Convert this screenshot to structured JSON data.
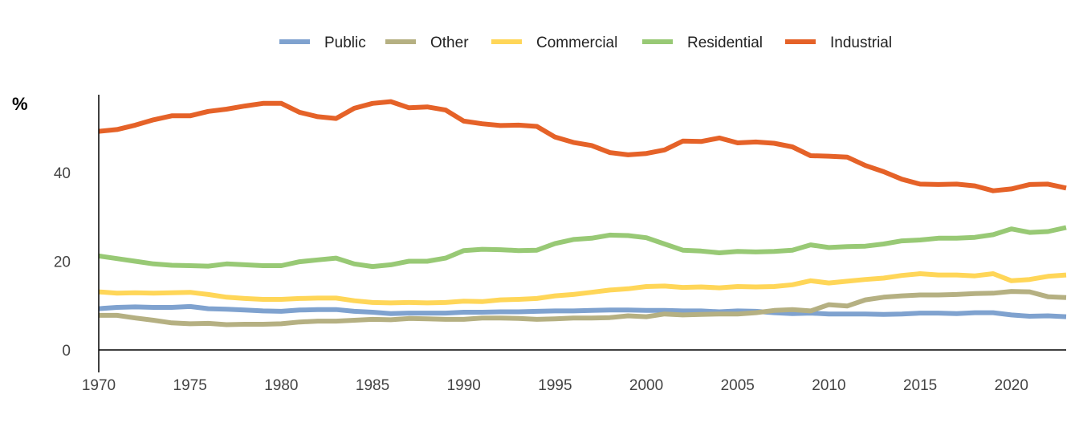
{
  "chart_data": {
    "type": "line",
    "title": "",
    "xlabel": "",
    "ylabel": "%",
    "xlim": [
      1970,
      2023
    ],
    "ylim": [
      0,
      60
    ],
    "x_ticks": [
      1970,
      1975,
      1980,
      1985,
      1990,
      1995,
      2000,
      2005,
      2010,
      2015,
      2020
    ],
    "y_ticks": [
      0,
      20,
      40
    ],
    "grid": false,
    "legend_position": "top-center",
    "x": [
      1970,
      1971,
      1972,
      1973,
      1974,
      1975,
      1976,
      1977,
      1978,
      1979,
      1980,
      1981,
      1982,
      1983,
      1984,
      1985,
      1986,
      1987,
      1988,
      1989,
      1990,
      1991,
      1992,
      1993,
      1994,
      1995,
      1996,
      1997,
      1998,
      1999,
      2000,
      2001,
      2002,
      2003,
      2004,
      2005,
      2006,
      2007,
      2008,
      2009,
      2010,
      2011,
      2012,
      2013,
      2014,
      2015,
      2016,
      2017,
      2018,
      2019,
      2020,
      2021,
      2022,
      2023
    ],
    "series": [
      {
        "name": "Public",
        "color": "#7fa2cf",
        "values": [
          9.3,
          9.6,
          9.7,
          9.6,
          9.6,
          9.8,
          9.3,
          9.2,
          9.0,
          8.8,
          8.7,
          9.0,
          9.1,
          9.1,
          8.7,
          8.5,
          8.2,
          8.3,
          8.3,
          8.3,
          8.5,
          8.5,
          8.6,
          8.6,
          8.7,
          8.8,
          8.8,
          8.9,
          9.0,
          9.0,
          8.9,
          8.9,
          8.8,
          8.8,
          8.6,
          8.8,
          8.7,
          8.4,
          8.2,
          8.3,
          8.1,
          8.1,
          8.1,
          8.0,
          8.1,
          8.3,
          8.3,
          8.2,
          8.4,
          8.4,
          7.9,
          7.6,
          7.7,
          7.5
        ]
      },
      {
        "name": "Other",
        "color": "#b5b082",
        "values": [
          7.8,
          7.8,
          7.2,
          6.7,
          6.1,
          5.9,
          6.0,
          5.7,
          5.8,
          5.8,
          5.9,
          6.3,
          6.5,
          6.5,
          6.7,
          6.9,
          6.8,
          7.1,
          7.0,
          6.9,
          6.9,
          7.2,
          7.2,
          7.1,
          6.9,
          7.0,
          7.2,
          7.2,
          7.3,
          7.7,
          7.5,
          8.1,
          7.9,
          8.0,
          8.1,
          8.1,
          8.4,
          8.9,
          9.1,
          8.8,
          10.2,
          9.9,
          11.3,
          11.9,
          12.2,
          12.4,
          12.4,
          12.5,
          12.7,
          12.8,
          13.2,
          13.1,
          12.0,
          11.8
        ]
      },
      {
        "name": "Commercial",
        "color": "#ffd658",
        "values": [
          13.1,
          12.8,
          12.9,
          12.8,
          12.9,
          13.0,
          12.5,
          11.9,
          11.6,
          11.4,
          11.4,
          11.6,
          11.7,
          11.7,
          11.1,
          10.7,
          10.6,
          10.7,
          10.6,
          10.7,
          11.0,
          10.9,
          11.3,
          11.4,
          11.6,
          12.2,
          12.5,
          13.0,
          13.5,
          13.8,
          14.3,
          14.4,
          14.1,
          14.2,
          14.0,
          14.3,
          14.2,
          14.3,
          14.7,
          15.6,
          15.1,
          15.5,
          15.9,
          16.2,
          16.8,
          17.2,
          16.9,
          16.9,
          16.7,
          17.2,
          15.6,
          15.9,
          16.6,
          16.9
        ]
      },
      {
        "name": "Residential",
        "color": "#98c975",
        "values": [
          21.2,
          20.6,
          20.0,
          19.4,
          19.1,
          19.0,
          18.9,
          19.4,
          19.2,
          19.0,
          19.0,
          19.9,
          20.3,
          20.7,
          19.4,
          18.8,
          19.2,
          20.0,
          20.0,
          20.7,
          22.4,
          22.7,
          22.6,
          22.4,
          22.5,
          24.0,
          24.9,
          25.2,
          25.9,
          25.8,
          25.3,
          23.9,
          22.5,
          22.3,
          21.9,
          22.2,
          22.1,
          22.2,
          22.5,
          23.7,
          23.1,
          23.3,
          23.4,
          23.9,
          24.6,
          24.8,
          25.2,
          25.2,
          25.4,
          26.0,
          27.3,
          26.5,
          26.7,
          27.6
        ]
      },
      {
        "name": "Industrial",
        "color": "#e56228",
        "values": [
          49.3,
          49.7,
          50.7,
          51.9,
          52.8,
          52.8,
          53.8,
          54.3,
          55.0,
          55.6,
          55.6,
          53.6,
          52.6,
          52.2,
          54.5,
          55.6,
          56.0,
          54.6,
          54.8,
          54.1,
          51.6,
          51.0,
          50.6,
          50.7,
          50.4,
          48.0,
          46.8,
          46.1,
          44.5,
          44.0,
          44.3,
          45.1,
          47.1,
          47.0,
          47.8,
          46.7,
          46.9,
          46.6,
          45.8,
          43.8,
          43.7,
          43.5,
          41.6,
          40.2,
          38.5,
          37.4,
          37.3,
          37.4,
          37.0,
          35.9,
          36.3,
          37.3,
          37.4,
          36.5
        ]
      }
    ]
  }
}
